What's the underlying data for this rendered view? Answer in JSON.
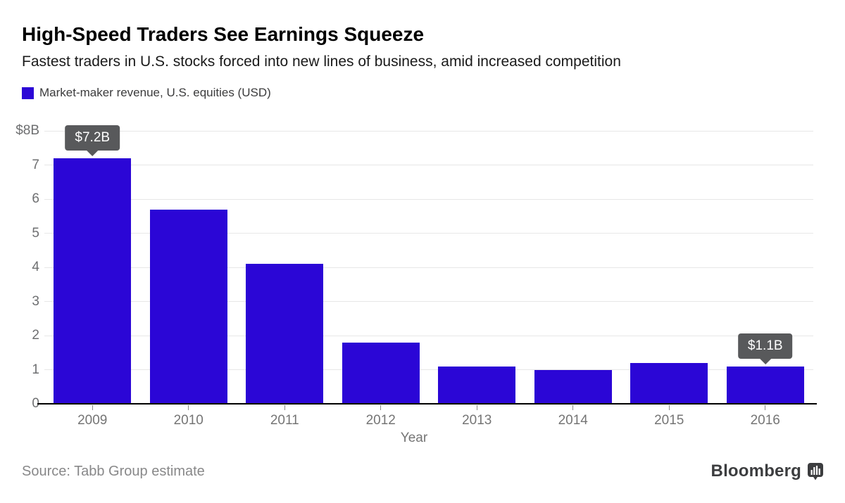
{
  "header": {
    "title": "High-Speed Traders See Earnings Squeeze",
    "subtitle": "Fastest traders in U.S. stocks forced into new lines of business, amid increased competition"
  },
  "footer": {
    "source": "Source: Tabb Group estimate",
    "brand": "Bloomberg"
  },
  "colors": {
    "bar": "#2b06d6",
    "tooltip_bg": "#58595b",
    "tooltip_text": "#ffffff",
    "brand_dark": "#3c3d3f"
  },
  "chart_data": {
    "type": "bar",
    "title": "High-Speed Traders See Earnings Squeeze",
    "subtitle": "Fastest traders in U.S. stocks forced into new lines of business, amid increased competition",
    "legend": "Market-maker revenue, U.S. equities (USD)",
    "legend_position": "top-left",
    "categories": [
      "2009",
      "2010",
      "2011",
      "2012",
      "2013",
      "2014",
      "2015",
      "2016"
    ],
    "values": [
      7.2,
      5.7,
      4.1,
      1.8,
      1.1,
      1.0,
      1.2,
      1.1
    ],
    "xlabel": "Year",
    "ylabel": "",
    "ylim": [
      0,
      8
    ],
    "grid": true,
    "bar_color": "#2b06d6",
    "tooltip_color": "#58595b",
    "yticks": [
      {
        "value": 8,
        "label": "$8B"
      },
      {
        "value": 7,
        "label": "7"
      },
      {
        "value": 6,
        "label": "6"
      },
      {
        "value": 5,
        "label": "5"
      },
      {
        "value": 4,
        "label": "4"
      },
      {
        "value": 3,
        "label": "3"
      },
      {
        "value": 2,
        "label": "2"
      },
      {
        "value": 1,
        "label": "1"
      },
      {
        "value": 0,
        "label": "0"
      }
    ],
    "annotations": [
      {
        "category": "2009",
        "label": "$7.2B"
      },
      {
        "category": "2016",
        "label": "$1.1B"
      }
    ]
  }
}
